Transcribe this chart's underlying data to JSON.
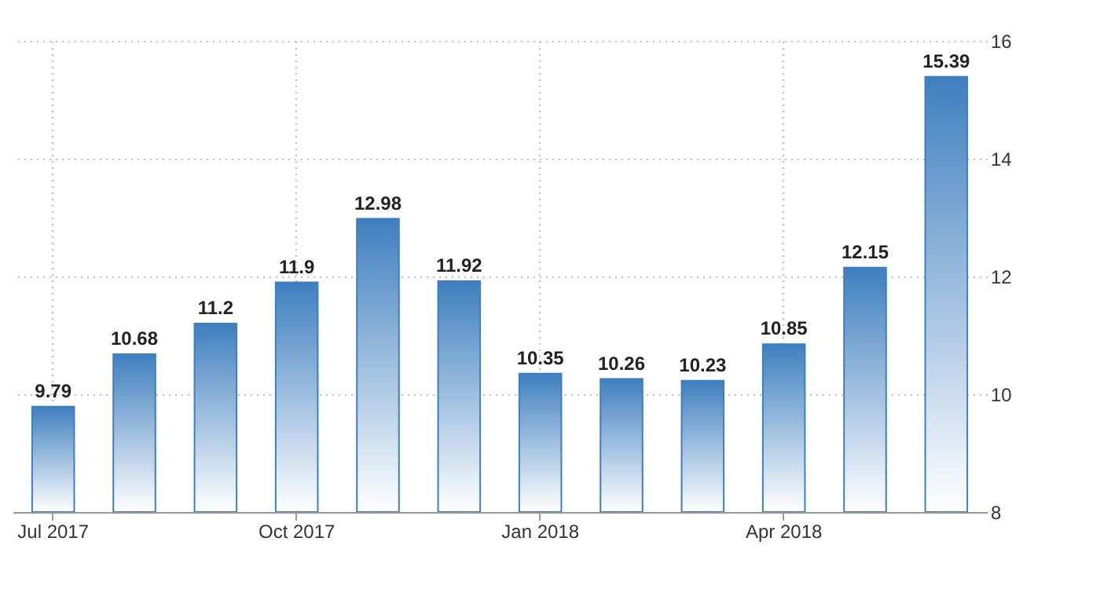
{
  "chart_data": {
    "type": "bar",
    "categories": [
      "Jul 2017",
      null,
      null,
      "Oct 2017",
      null,
      null,
      "Jan 2018",
      null,
      null,
      "Apr 2018",
      null,
      null
    ],
    "values": [
      9.79,
      10.68,
      11.2,
      11.9,
      12.98,
      11.92,
      10.35,
      10.26,
      10.23,
      10.85,
      12.15,
      15.39
    ],
    "color": "#3f7fbf",
    "ylim": [
      8,
      16
    ],
    "yticks": [
      8,
      10,
      12,
      14,
      16
    ],
    "grid": true,
    "data_labels": true
  }
}
